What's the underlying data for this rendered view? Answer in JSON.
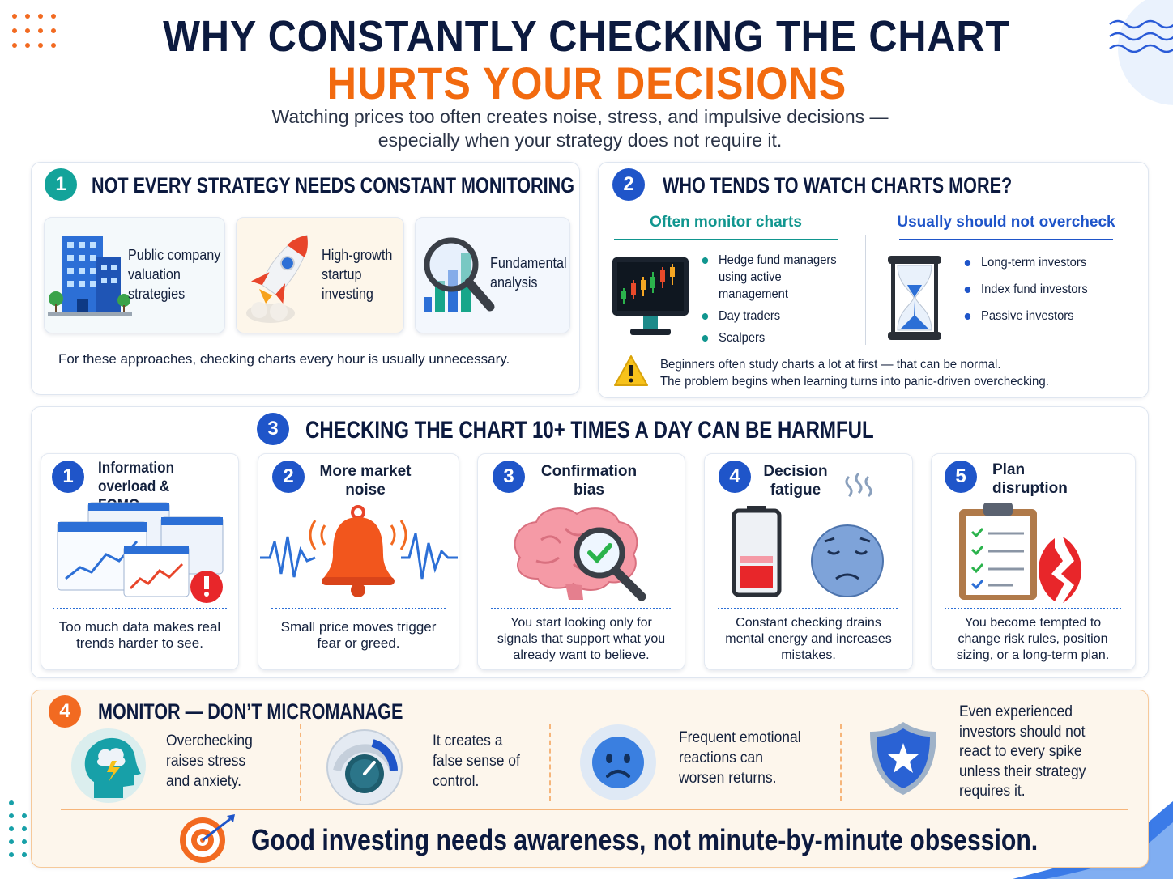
{
  "header": {
    "title_line1": "WHY CONSTANTLY CHECKING THE CHART",
    "title_line2": "HURTS YOUR DECISIONS",
    "subtitle_line1": "Watching prices too often creates noise, stress, and impulsive decisions —",
    "subtitle_line2": "especially when your strategy does not require it."
  },
  "sections": [
    {
      "number": "1",
      "title": "NOT EVERY STRATEGY NEEDS CONSTANT MONITORING",
      "cards": [
        {
          "label": "Public company valuation strategies"
        },
        {
          "label": "High-growth startup investing"
        },
        {
          "label": "Fundamental analysis"
        }
      ],
      "note": "For these approaches, checking charts every hour is usually unnecessary."
    },
    {
      "number": "2",
      "title": "WHO TENDS TO WATCH CHARTS MORE?",
      "columns": [
        {
          "heading": "Often monitor charts",
          "items": [
            "Hedge fund managers using active management",
            "Day traders",
            "Scalpers"
          ]
        },
        {
          "heading": "Usually should not overcheck",
          "items": [
            "Long-term investors",
            "Index fund investors",
            "Passive investors"
          ]
        }
      ],
      "warning_lines": [
        "Beginners often study charts a lot at first — that can be normal.",
        "The problem begins when learning turns into panic-driven overchecking."
      ]
    },
    {
      "number": "3",
      "title": "CHECKING THE CHART 10+ TIMES A DAY CAN BE HARMFUL",
      "items": [
        {
          "number": "1",
          "title": "Information overload & FOMO",
          "text": "Too much data makes real trends harder to see."
        },
        {
          "number": "2",
          "title": "More market noise",
          "text": "Small price moves trigger fear or greed."
        },
        {
          "number": "3",
          "title": "Confirmation bias",
          "text": "You start looking only for signals that support what you already want to believe."
        },
        {
          "number": "4",
          "title": "Decision fatigue",
          "text": "Constant checking drains mental energy and increases mistakes."
        },
        {
          "number": "5",
          "title": "Plan disruption",
          "text": "You become tempted to change risk rules, position sizing, or a long-term plan."
        }
      ]
    },
    {
      "number": "4",
      "title": "MONITOR — DON’T MICROMANAGE",
      "items": [
        {
          "text": "Overchecking raises stress and anxiety."
        },
        {
          "text": "It creates a false sense of control."
        },
        {
          "text": "Frequent emotional reactions can worsen returns."
        },
        {
          "text": "Even experienced investors should not react to every spike unless their strategy requires it."
        }
      ],
      "footer": "Good investing needs awareness, not minute-by-minute obsession."
    }
  ]
}
